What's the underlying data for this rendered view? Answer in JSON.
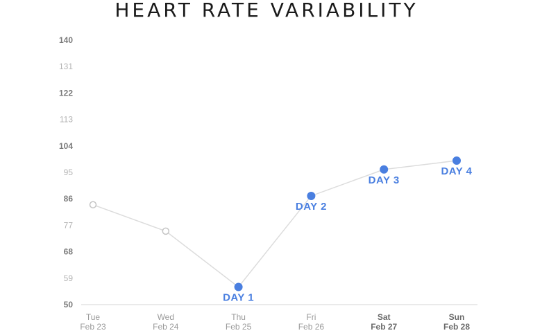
{
  "colors": {
    "accent": "#4a7fe0",
    "line": "#dcdcdc",
    "hollow_marker": "#c4c4c4",
    "axis": "#d4d4d4"
  },
  "chart_data": {
    "type": "line",
    "title": "HEART RATE VARIABILITY",
    "xlabel": "",
    "ylabel": "",
    "ylim": [
      50,
      140
    ],
    "yticks": [
      "140",
      "131",
      "122",
      "113",
      "104",
      "95",
      "86",
      "77",
      "68",
      "59",
      "50"
    ],
    "grid": false,
    "categories": [
      {
        "day": "Tue",
        "date": "Feb 23"
      },
      {
        "day": "Wed",
        "date": "Feb 24"
      },
      {
        "day": "Thu",
        "date": "Feb 25"
      },
      {
        "day": "Fri",
        "date": "Feb 26"
      },
      {
        "day": "Sat",
        "date": "Feb 27"
      },
      {
        "day": "Sun",
        "date": "Feb 28"
      }
    ],
    "series": [
      {
        "values": [
          84,
          75,
          56,
          87,
          96,
          99
        ],
        "markers": [
          "hollow",
          "hollow",
          "filled",
          "filled",
          "filled",
          "filled"
        ],
        "labels": [
          "",
          "",
          "DAY 1",
          "DAY 2",
          "DAY 3",
          "DAY 4"
        ]
      }
    ]
  }
}
